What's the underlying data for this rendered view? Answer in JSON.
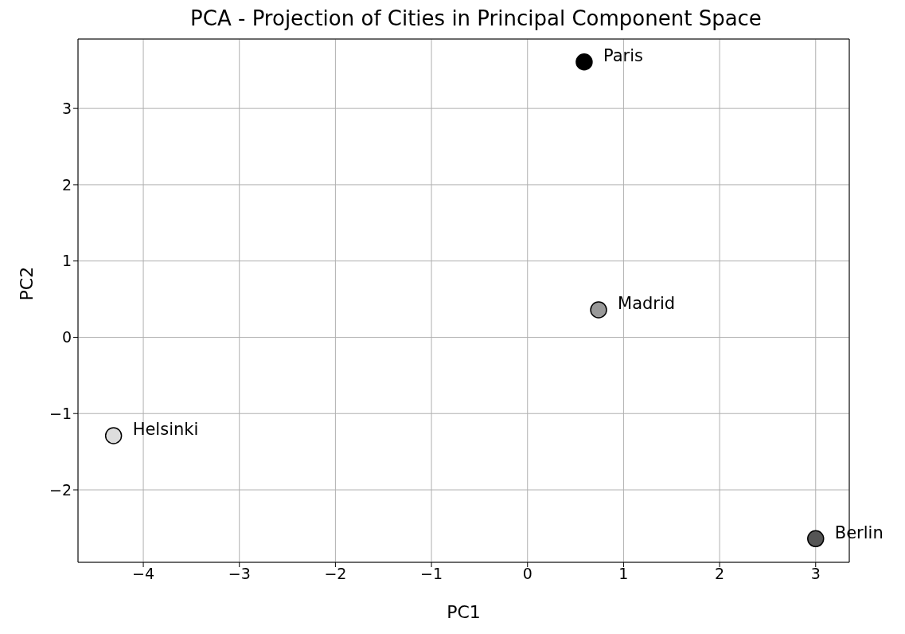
{
  "chart_data": {
    "type": "scatter",
    "title": "PCA - Projection of Cities in Principal Component Space",
    "xlabel": "PC1",
    "ylabel": "PC2",
    "x": [
      0.59,
      0.74,
      -4.31,
      3.0
    ],
    "values": [
      3.61,
      0.36,
      -1.29,
      -2.64
    ],
    "colors": [
      "#000000",
      "#999999",
      "#dddddd",
      "#555555"
    ],
    "xlim": [
      -4.68,
      3.35
    ],
    "ylim": [
      -2.95,
      3.91
    ],
    "xticks": [
      -4,
      -3,
      -2,
      -1,
      0,
      1,
      2,
      3
    ],
    "yticks": [
      -2,
      -1,
      0,
      1,
      2,
      3
    ],
    "grid": true,
    "marker": "circle",
    "annotations": [
      {
        "text": "Paris",
        "x": 0.59,
        "y": 3.61
      },
      {
        "text": "Madrid",
        "x": 0.74,
        "y": 0.36
      },
      {
        "text": "Helsinki",
        "x": -4.31,
        "y": -1.29
      },
      {
        "text": "Berlin",
        "x": 3.0,
        "y": -2.64
      }
    ]
  }
}
